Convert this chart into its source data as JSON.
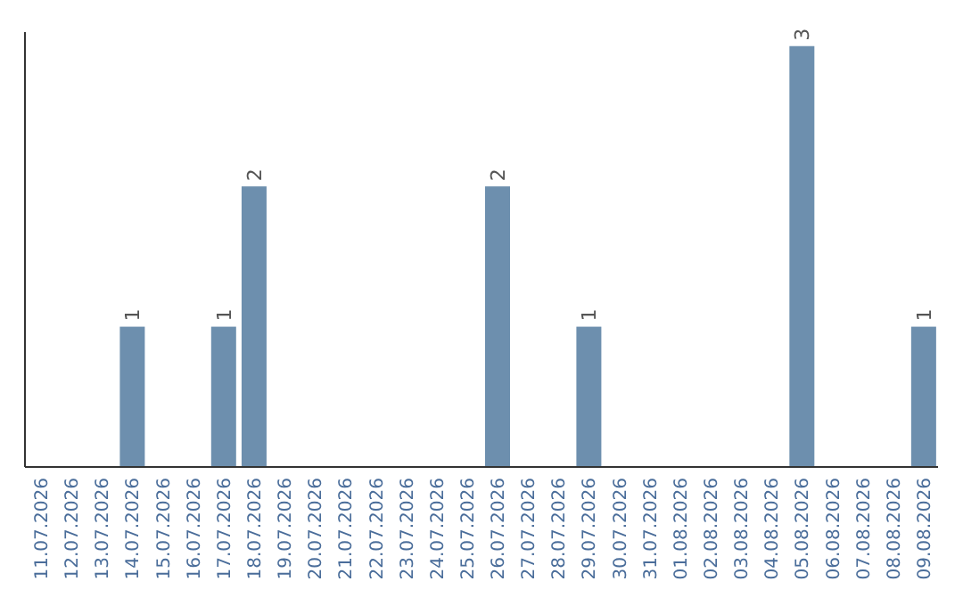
{
  "chart_data": {
    "type": "bar",
    "categories": [
      "11.07.2026",
      "12.07.2026",
      "13.07.2026",
      "14.07.2026",
      "15.07.2026",
      "16.07.2026",
      "17.07.2026",
      "18.07.2026",
      "19.07.2026",
      "20.07.2026",
      "21.07.2026",
      "22.07.2026",
      "23.07.2026",
      "24.07.2026",
      "25.07.2026",
      "26.07.2026",
      "27.07.2026",
      "28.07.2026",
      "29.07.2026",
      "30.07.2026",
      "31.07.2026",
      "01.08.2026",
      "02.08.2026",
      "03.08.2026",
      "04.08.2026",
      "05.08.2026",
      "06.08.2026",
      "07.08.2026",
      "08.08.2026",
      "09.08.2026"
    ],
    "values": [
      0,
      0,
      0,
      1,
      0,
      0,
      1,
      2,
      0,
      0,
      0,
      0,
      0,
      0,
      0,
      2,
      0,
      0,
      1,
      0,
      0,
      0,
      0,
      0,
      0,
      3,
      0,
      0,
      0,
      1
    ],
    "value_labels": [
      null,
      null,
      null,
      "1",
      null,
      null,
      "1",
      "2",
      null,
      null,
      null,
      null,
      null,
      null,
      null,
      "2",
      null,
      null,
      "1",
      null,
      null,
      null,
      null,
      null,
      null,
      "3",
      null,
      null,
      null,
      "1"
    ],
    "color": "#6d8fae",
    "ylim": [
      0,
      3.1
    ],
    "tick_labels": "x",
    "grid": false
  }
}
